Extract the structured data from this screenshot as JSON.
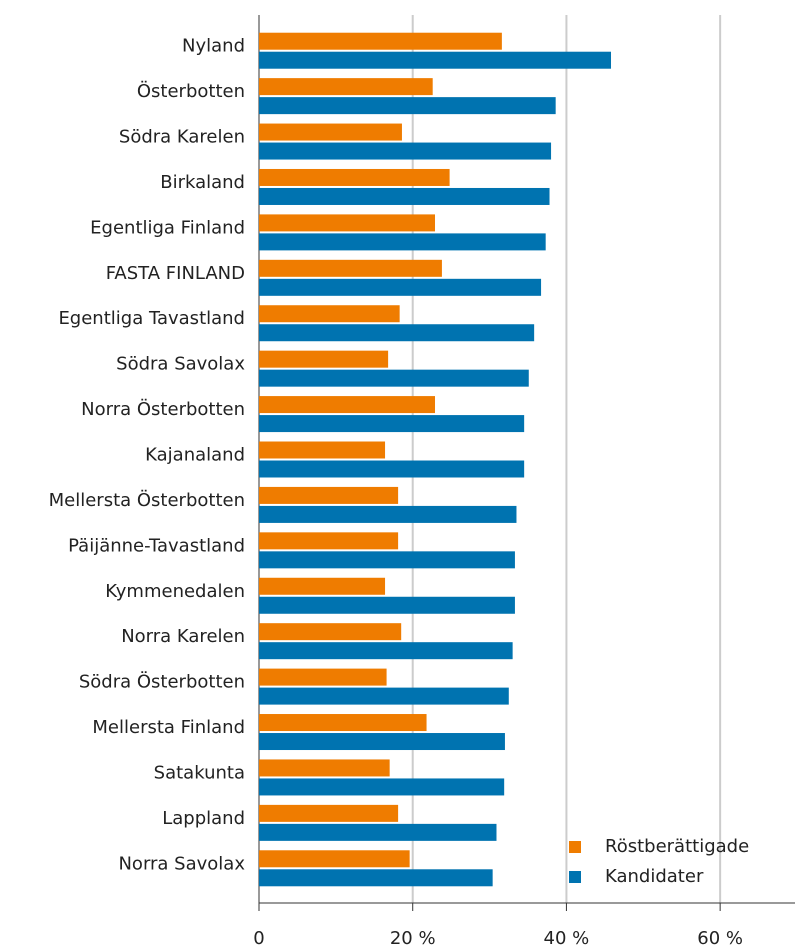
{
  "chart_data": {
    "type": "hbar",
    "categories": [
      "Nyland",
      "Österbotten",
      "Södra Karelen",
      "Birkaland",
      "Egentliga Finland",
      "FASTA FINLAND",
      "Egentliga Tavastland",
      "Södra Savolax",
      "Norra Österbotten",
      "Kajanaland",
      "Mellersta Österbotten",
      "Päijänne-Tavastland",
      "Kymmenedalen",
      "Norra Karelen",
      "Södra Österbotten",
      "Mellersta Finland",
      "Satakunta",
      "Lappland",
      "Norra Savolax"
    ],
    "series": [
      {
        "name": "Röstberättigade",
        "color": "#ef7c00",
        "values": [
          31.6,
          22.6,
          18.6,
          24.8,
          22.9,
          23.8,
          18.3,
          16.8,
          22.9,
          16.4,
          18.1,
          18.1,
          16.4,
          18.5,
          16.6,
          21.8,
          17.0,
          18.1,
          19.6
        ]
      },
      {
        "name": "Kandidater",
        "color": "#0073b0",
        "values": [
          45.8,
          38.6,
          38.0,
          37.8,
          37.3,
          36.7,
          35.8,
          35.1,
          34.5,
          34.5,
          33.5,
          33.3,
          33.3,
          33.0,
          32.5,
          32.0,
          31.9,
          30.9,
          30.4
        ]
      }
    ],
    "xlim": [
      0,
      70
    ],
    "xticks": [
      0,
      {
        "value": 20,
        "label": "20 %"
      },
      {
        "value": 40,
        "label": "40 %"
      },
      {
        "value": 60,
        "label": "60 %"
      }
    ],
    "grid": true,
    "legend": "lower right"
  }
}
